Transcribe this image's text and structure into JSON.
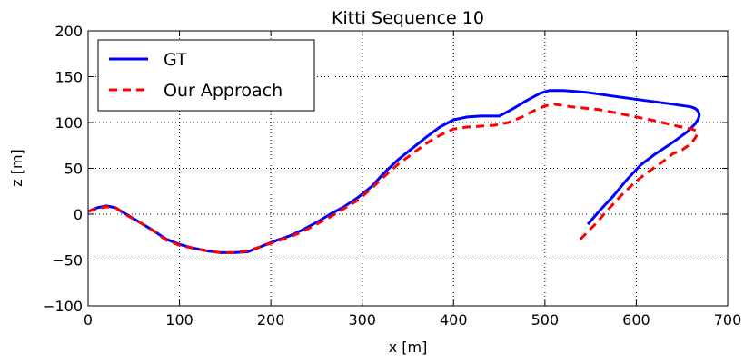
{
  "chart_data": {
    "type": "line",
    "title": "Kitti Sequence 10",
    "xlabel": "x [m]",
    "ylabel": "z [m]",
    "xlim": [
      0,
      700
    ],
    "ylim": [
      -100,
      200
    ],
    "xticks": [
      0,
      100,
      200,
      300,
      400,
      500,
      600,
      700
    ],
    "yticks": [
      -100,
      -50,
      0,
      50,
      100,
      150,
      200
    ],
    "xtick_labels": [
      "0",
      "100",
      "200",
      "300",
      "400",
      "500",
      "600",
      "700"
    ],
    "ytick_labels": [
      "−100",
      "−50",
      "0",
      "50",
      "100",
      "150",
      "200"
    ],
    "grid": true,
    "legend_position": "top-left",
    "series": [
      {
        "name": "GT",
        "color": "#0000ff",
        "style": "solid",
        "points": [
          [
            0,
            3
          ],
          [
            10,
            7
          ],
          [
            20,
            9
          ],
          [
            30,
            7
          ],
          [
            40,
            1
          ],
          [
            55,
            -8
          ],
          [
            70,
            -17
          ],
          [
            85,
            -27
          ],
          [
            100,
            -33
          ],
          [
            115,
            -37
          ],
          [
            130,
            -40
          ],
          [
            145,
            -42
          ],
          [
            160,
            -42
          ],
          [
            175,
            -41
          ],
          [
            190,
            -35
          ],
          [
            205,
            -29
          ],
          [
            220,
            -24
          ],
          [
            235,
            -17
          ],
          [
            250,
            -9
          ],
          [
            265,
            0
          ],
          [
            280,
            8
          ],
          [
            295,
            18
          ],
          [
            310,
            30
          ],
          [
            325,
            46
          ],
          [
            340,
            60
          ],
          [
            355,
            72
          ],
          [
            370,
            84
          ],
          [
            385,
            95
          ],
          [
            400,
            103
          ],
          [
            415,
            106
          ],
          [
            430,
            107
          ],
          [
            440,
            107
          ],
          [
            450,
            107
          ],
          [
            465,
            115
          ],
          [
            480,
            124
          ],
          [
            495,
            132
          ],
          [
            505,
            135
          ],
          [
            520,
            135
          ],
          [
            545,
            133
          ],
          [
            580,
            128
          ],
          [
            610,
            124
          ],
          [
            640,
            120
          ],
          [
            660,
            117
          ],
          [
            665,
            115
          ],
          [
            668,
            112
          ],
          [
            669,
            108
          ],
          [
            668,
            104
          ],
          [
            664,
            98
          ],
          [
            656,
            90
          ],
          [
            645,
            82
          ],
          [
            635,
            75
          ],
          [
            620,
            65
          ],
          [
            605,
            54
          ],
          [
            590,
            38
          ],
          [
            575,
            20
          ],
          [
            560,
            4
          ],
          [
            547,
            -11
          ]
        ]
      },
      {
        "name": "Our Approach",
        "color": "#ff0000",
        "style": "dashed",
        "points": [
          [
            0,
            3
          ],
          [
            10,
            6
          ],
          [
            20,
            8
          ],
          [
            30,
            7
          ],
          [
            40,
            0
          ],
          [
            55,
            -8
          ],
          [
            70,
            -17
          ],
          [
            85,
            -28
          ],
          [
            100,
            -34
          ],
          [
            115,
            -37
          ],
          [
            130,
            -40
          ],
          [
            145,
            -42
          ],
          [
            160,
            -42
          ],
          [
            175,
            -40
          ],
          [
            190,
            -35
          ],
          [
            205,
            -30
          ],
          [
            220,
            -25
          ],
          [
            235,
            -19
          ],
          [
            250,
            -11
          ],
          [
            265,
            -3
          ],
          [
            280,
            6
          ],
          [
            295,
            15
          ],
          [
            310,
            28
          ],
          [
            325,
            42
          ],
          [
            340,
            55
          ],
          [
            355,
            66
          ],
          [
            370,
            77
          ],
          [
            385,
            86
          ],
          [
            400,
            93
          ],
          [
            415,
            95
          ],
          [
            430,
            96
          ],
          [
            445,
            97
          ],
          [
            460,
            100
          ],
          [
            475,
            106
          ],
          [
            490,
            114
          ],
          [
            500,
            118
          ],
          [
            510,
            120
          ],
          [
            530,
            117
          ],
          [
            560,
            114
          ],
          [
            590,
            108
          ],
          [
            620,
            102
          ],
          [
            645,
            96
          ],
          [
            660,
            93
          ],
          [
            666,
            91
          ],
          [
            667,
            88
          ],
          [
            665,
            84
          ],
          [
            660,
            77
          ],
          [
            650,
            70
          ],
          [
            640,
            66
          ],
          [
            630,
            58
          ],
          [
            620,
            51
          ],
          [
            610,
            44
          ],
          [
            600,
            36
          ],
          [
            585,
            22
          ],
          [
            570,
            6
          ],
          [
            555,
            -11
          ],
          [
            538,
            -28
          ]
        ]
      }
    ]
  }
}
